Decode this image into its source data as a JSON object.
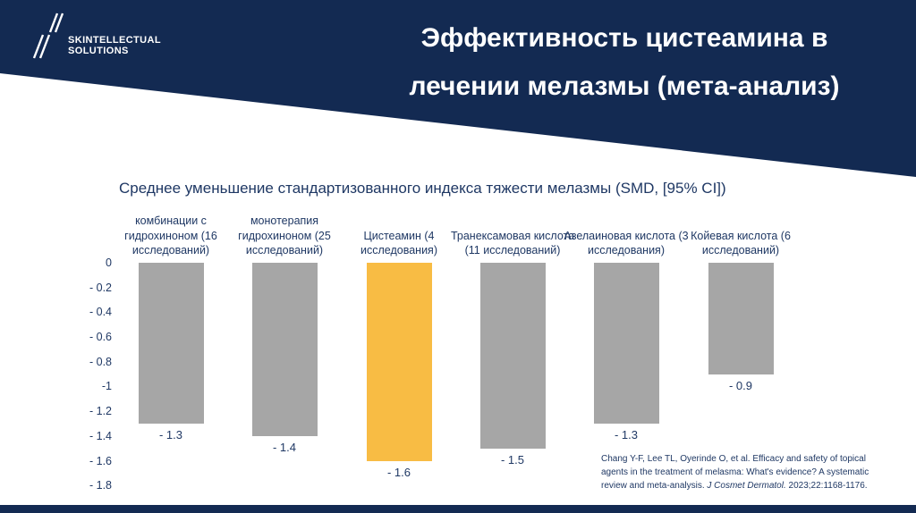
{
  "header": {
    "logo": {
      "icon": "double-slash-icon",
      "line1": "SKINTELLECTUAL",
      "line2": "SOLUTIONS"
    },
    "title_line1": "Эффективность цистеамина в",
    "title_line2": "лечении мелазмы (мета-анализ)"
  },
  "chart_data": {
    "type": "bar",
    "title": "Среднее уменьшение стандартизованного индекса тяжести мелазмы (SMD, [95% CI])",
    "categories": [
      "комбинации с гидрохиноном (16 исследований)",
      "монотерапия гидрохиноном (25 исследований)",
      "Цистеамин (4 исследования)",
      "Транексамовая кислота (11 исследований)",
      "Азелаиновая кислота (3 исследования)",
      "Койевая кислота (6 исследований)"
    ],
    "values": [
      -1.3,
      -1.4,
      -1.6,
      -1.5,
      -1.3,
      -0.9
    ],
    "value_labels": [
      "- 1.3",
      "- 1.4",
      "- 1.6",
      "- 1.5",
      "- 1.3",
      "- 0.9"
    ],
    "highlight_index": 2,
    "y_ticks": [
      "0",
      "- 0.2",
      "- 0.4",
      "- 0.6",
      "- 0.8",
      "-1",
      "- 1.2",
      "- 1.4",
      "- 1.6",
      "- 1.8"
    ],
    "ylim": [
      -1.8,
      0
    ],
    "xlabel": "",
    "ylabel": "",
    "grid": false,
    "legend": false,
    "bar_color": "#A6A6A6",
    "highlight_color": "#F8BC44"
  },
  "citation": {
    "line1": "Chang Y-F, Lee TL, Oyerinde O, et al. Efficacy and safety of topical",
    "line2": "agents in the treatment of melasma: What's evidence? A systematic",
    "line3_pre": "review and meta-analysis. ",
    "line3_italic": "J Cosmet Dermatol.",
    "line3_post": " 2023;22:1168-1176."
  },
  "colors": {
    "navy": "#132A52",
    "text_navy": "#1F3864",
    "bar_gray": "#A6A6A6",
    "bar_orange": "#F8BC44"
  }
}
